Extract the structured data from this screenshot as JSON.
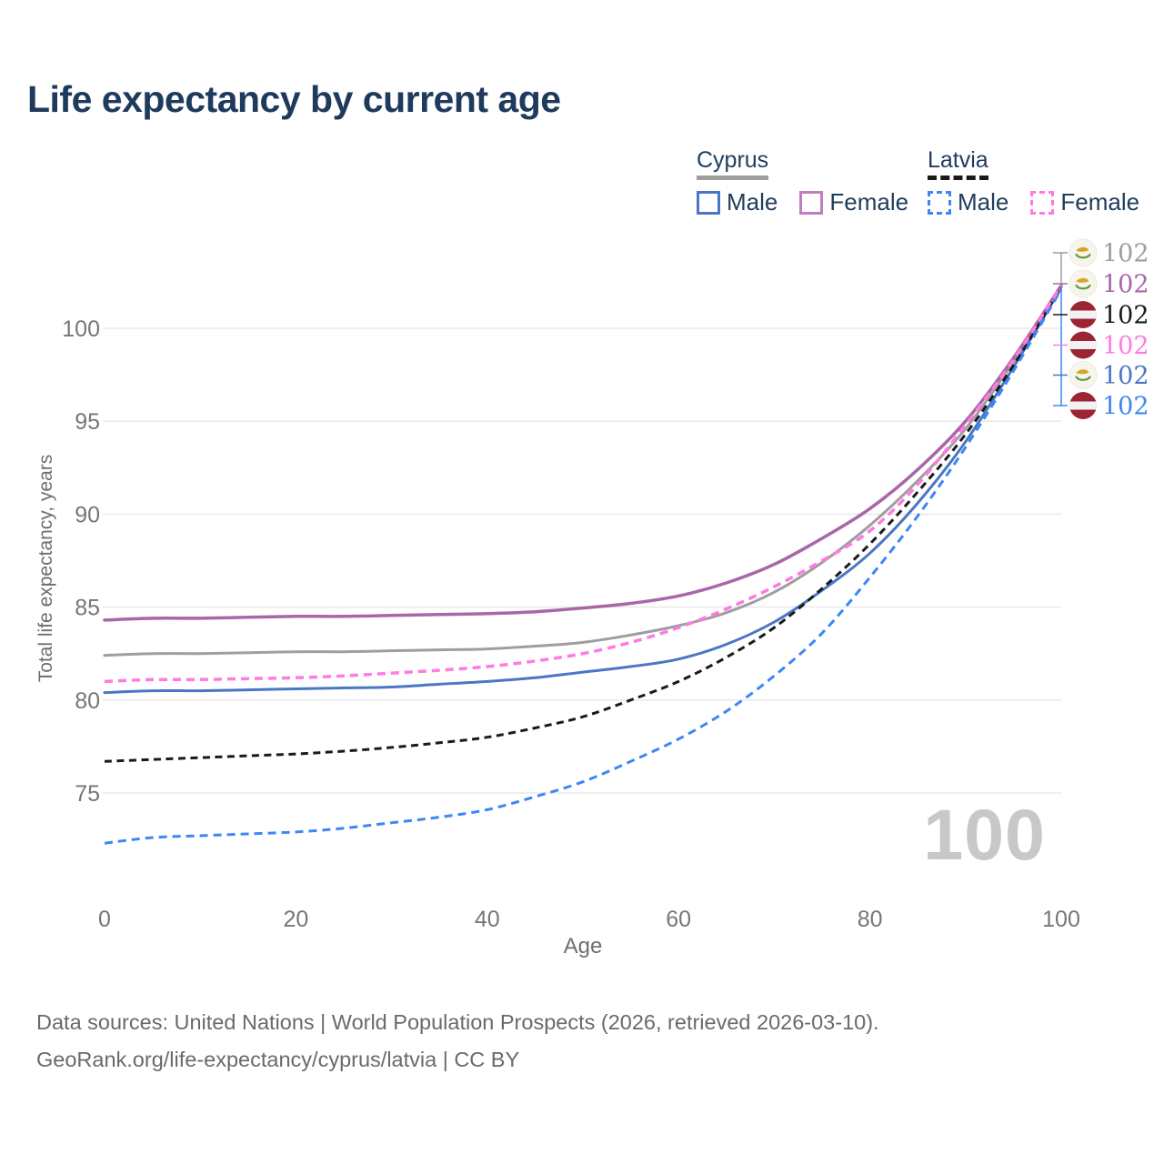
{
  "header": {
    "title": "Life expectancy by current age"
  },
  "legend": {
    "groups": [
      {
        "name": "Cyprus",
        "line_style": "solid",
        "underline_color": "#9e9e9e",
        "items": [
          {
            "label": "Male",
            "color": "#4a77c4"
          },
          {
            "label": "Female",
            "color": "#c07ec0"
          }
        ]
      },
      {
        "name": "Latvia",
        "line_style": "dashed",
        "underline_color": "#1a1a1a",
        "items": [
          {
            "label": "Male",
            "color": "#3d87f5"
          },
          {
            "label": "Female",
            "color": "#ff7ae1"
          }
        ]
      }
    ]
  },
  "chart_data": {
    "type": "line",
    "title": "Life expectancy by current age",
    "xlabel": "Age",
    "ylabel": "Total life expectancy, years",
    "xlim": [
      0,
      100
    ],
    "ylim": [
      71.5,
      103.5
    ],
    "xticks": [
      0,
      20,
      40,
      60,
      80,
      100
    ],
    "yticks": [
      75,
      80,
      85,
      90,
      95,
      100
    ],
    "grid": "horizontal-only",
    "legend_position": "top-right",
    "x": [
      0,
      5,
      10,
      15,
      20,
      25,
      30,
      35,
      40,
      45,
      50,
      55,
      60,
      65,
      70,
      75,
      80,
      85,
      90,
      95,
      100
    ],
    "series": [
      {
        "id": "cyprus-both",
        "name": "Cyprus Both sexes",
        "color": "#9e9e9e",
        "dash": "solid",
        "width": 3,
        "values": [
          82.4,
          82.5,
          82.5,
          82.55,
          82.6,
          82.6,
          82.65,
          82.7,
          82.75,
          82.9,
          83.1,
          83.5,
          84.0,
          84.7,
          85.8,
          87.4,
          89.4,
          91.8,
          94.6,
          98.2,
          102.3
        ]
      },
      {
        "id": "cyprus-male",
        "name": "Cyprus Male",
        "color": "#4a77c4",
        "dash": "solid",
        "width": 3,
        "values": [
          80.4,
          80.5,
          80.5,
          80.55,
          80.6,
          80.65,
          80.7,
          80.85,
          81.0,
          81.2,
          81.5,
          81.8,
          82.2,
          83.0,
          84.2,
          85.9,
          87.9,
          90.6,
          93.9,
          97.9,
          102.2
        ]
      },
      {
        "id": "cyprus-female",
        "name": "Cyprus Female",
        "color": "#a966a9",
        "dash": "solid",
        "width": 3.5,
        "values": [
          84.3,
          84.4,
          84.4,
          84.45,
          84.5,
          84.5,
          84.55,
          84.6,
          84.65,
          84.75,
          84.95,
          85.2,
          85.6,
          86.3,
          87.3,
          88.7,
          90.3,
          92.4,
          95.0,
          98.4,
          102.3
        ]
      },
      {
        "id": "latvia-both",
        "name": "Latvia Both sexes",
        "color": "#1a1a1a",
        "dash": "dashed",
        "width": 3,
        "values": [
          76.7,
          76.8,
          76.9,
          77.0,
          77.1,
          77.25,
          77.45,
          77.7,
          78.0,
          78.5,
          79.1,
          80.0,
          81.0,
          82.3,
          83.9,
          86.0,
          88.4,
          91.2,
          94.3,
          98.0,
          102.2
        ]
      },
      {
        "id": "latvia-male",
        "name": "Latvia Male",
        "color": "#3d87f5",
        "dash": "dashed",
        "width": 3,
        "values": [
          72.3,
          72.6,
          72.7,
          72.8,
          72.9,
          73.1,
          73.4,
          73.7,
          74.1,
          74.8,
          75.6,
          76.7,
          77.9,
          79.4,
          81.3,
          83.6,
          86.6,
          89.9,
          93.6,
          97.7,
          102.1
        ]
      },
      {
        "id": "latvia-female",
        "name": "Latvia Female",
        "color": "#ff7ae1",
        "dash": "dashed",
        "width": 3.5,
        "values": [
          81.0,
          81.1,
          81.1,
          81.15,
          81.2,
          81.3,
          81.45,
          81.6,
          81.8,
          82.1,
          82.5,
          83.1,
          83.9,
          84.9,
          86.1,
          87.5,
          89.1,
          91.6,
          94.8,
          98.3,
          102.3
        ]
      }
    ],
    "end_labels": [
      {
        "text": "102",
        "flag": "cyprus",
        "color": "#9e9e9e",
        "series": "cyprus-both"
      },
      {
        "text": "102",
        "flag": "cyprus",
        "color": "#a966a9",
        "series": "cyprus-female"
      },
      {
        "text": "102",
        "flag": "latvia",
        "color": "#1a1a1a",
        "series": "latvia-both"
      },
      {
        "text": "102",
        "flag": "latvia",
        "color": "#ff7ae1",
        "series": "latvia-female"
      },
      {
        "text": "102",
        "flag": "cyprus",
        "color": "#4a77c4",
        "series": "cyprus-male"
      },
      {
        "text": "102",
        "flag": "latvia",
        "color": "#3d87f5",
        "series": "latvia-male"
      }
    ]
  },
  "watermark": {
    "age_counter": "100"
  },
  "footer": {
    "line1": "Data sources: United Nations | World Population Prospects (2026, retrieved 2026-03-10).",
    "line2": "GeoRank.org/life-expectancy/cyprus/latvia | CC BY"
  },
  "flag_colors": {
    "latvia_red": "#9d2433",
    "latvia_white": "#f2f2f2",
    "cyprus_bg": "#f7f4ee",
    "cyprus_copper": "#d5a626",
    "cyprus_green": "#5a9e33"
  }
}
